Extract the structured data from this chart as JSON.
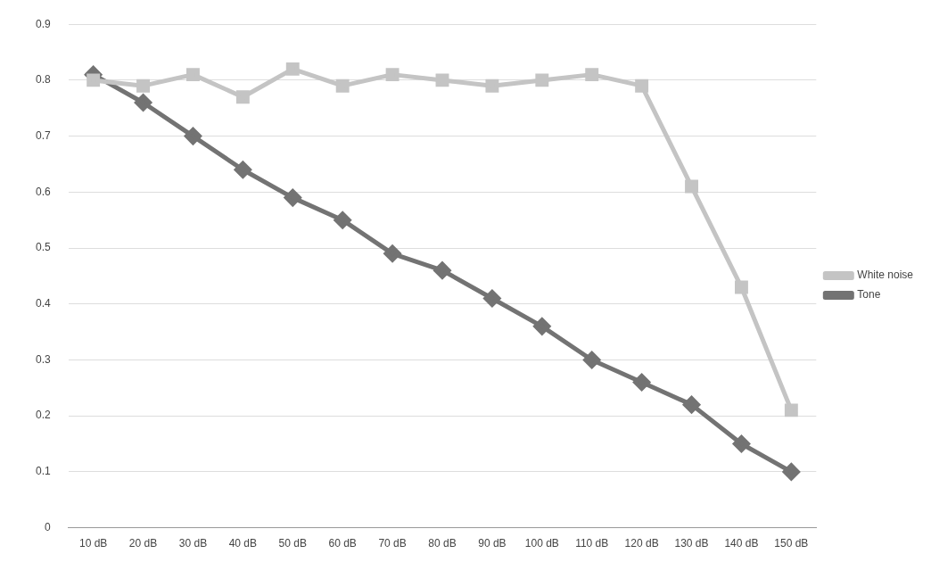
{
  "chart_data": {
    "type": "line",
    "categories": [
      "10 dB",
      "20 dB",
      "30 dB",
      "40 dB",
      "50 dB",
      "60 dB",
      "70 dB",
      "80 dB",
      "90 dB",
      "100 dB",
      "110 dB",
      "120 dB",
      "130 dB",
      "140 dB",
      "150 dB"
    ],
    "series": [
      {
        "name": "Tone",
        "color": "#737373",
        "marker": "diamond",
        "values": [
          0.81,
          0.76,
          0.7,
          0.64,
          0.59,
          0.55,
          0.49,
          0.46,
          0.41,
          0.36,
          0.3,
          0.26,
          0.22,
          0.15,
          0.1
        ]
      },
      {
        "name": "White noise",
        "color": "#c4c4c4",
        "marker": "square",
        "values": [
          0.8,
          0.79,
          0.81,
          0.77,
          0.82,
          0.79,
          0.81,
          0.8,
          0.79,
          0.8,
          0.81,
          0.79,
          0.61,
          0.43,
          0.21
        ]
      }
    ],
    "ylim": [
      0,
      0.9
    ],
    "yticks": [
      0,
      0.1,
      0.2,
      0.3,
      0.4,
      0.5,
      0.6,
      0.7,
      0.8,
      0.9
    ],
    "grid": "y",
    "legend": "right",
    "line_style": "solid"
  }
}
